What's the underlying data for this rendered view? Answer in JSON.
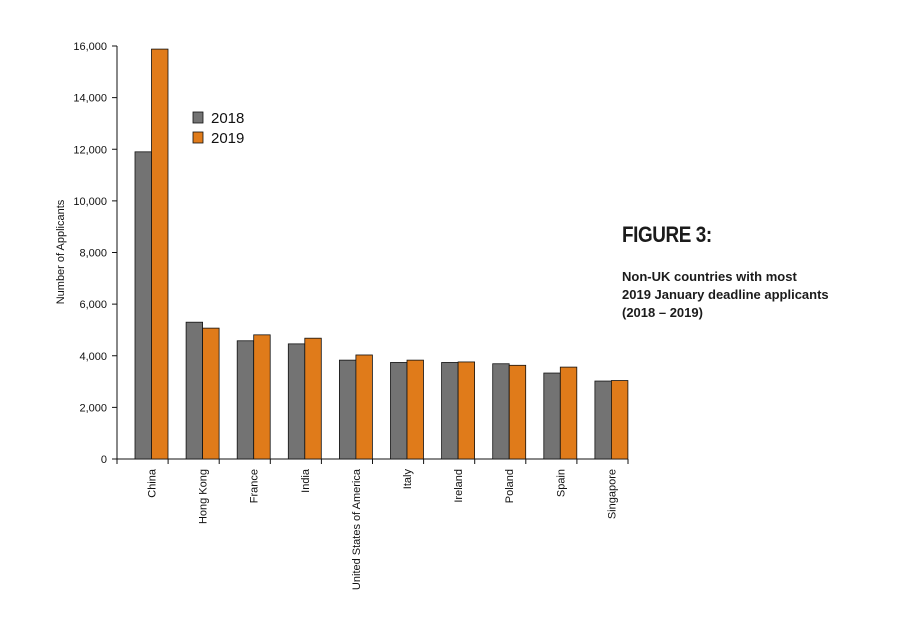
{
  "figure": {
    "title": "FIGURE 3:",
    "subtitle": "Non-UK countries with most\n2019 January deadline applicants\n(2018 – 2019)"
  },
  "chart_data": {
    "type": "bar",
    "categories": [
      "China",
      "Hong Kong",
      "France",
      "India",
      "United States of America",
      "Italy",
      "Ireland",
      "Poland",
      "Spain",
      "Singapore"
    ],
    "series": [
      {
        "name": "2018",
        "color": "#737373",
        "values": [
          11900,
          5300,
          4580,
          4460,
          3830,
          3740,
          3740,
          3690,
          3330,
          3020
        ]
      },
      {
        "name": "2019",
        "color": "#e07b1a",
        "values": [
          15880,
          5070,
          4810,
          4680,
          4030,
          3830,
          3760,
          3630,
          3560,
          3040
        ]
      }
    ],
    "ylabel": "Number of Applicants",
    "xlabel": "",
    "ylim": [
      0,
      16000
    ],
    "yticks": [
      0,
      2000,
      4000,
      6000,
      8000,
      10000,
      12000,
      14000,
      16000
    ],
    "ytick_labels": [
      "0",
      "2,000",
      "4,000",
      "6,000",
      "8,000",
      "10,000",
      "12,000",
      "14,000",
      "16,000"
    ],
    "legend_position": "top-left",
    "grid": false
  }
}
